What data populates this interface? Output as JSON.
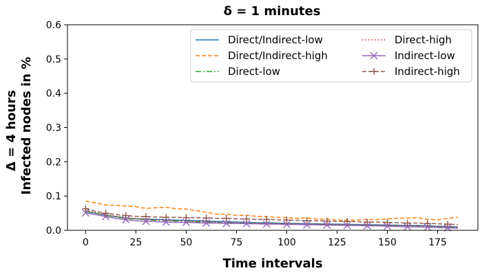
{
  "chart_data": {
    "type": "line",
    "title": "δ = 1 minutes",
    "xlabel": "Time intervals",
    "ylabel_lines": [
      "Δ = 4 hours",
      "Infected nodes in %"
    ],
    "xlim": [
      -9,
      195
    ],
    "ylim": [
      0,
      0.6
    ],
    "xticks": [
      0,
      25,
      50,
      75,
      100,
      125,
      150,
      175
    ],
    "yticks": [
      "0.0",
      "0.1",
      "0.2",
      "0.3",
      "0.4",
      "0.5",
      "0.6"
    ],
    "ytick_values": [
      0,
      0.1,
      0.2,
      0.3,
      0.4,
      0.5,
      0.6
    ],
    "grid": false,
    "legend_position": "upper-right",
    "x": [
      0,
      5,
      10,
      15,
      20,
      25,
      30,
      35,
      40,
      45,
      50,
      55,
      60,
      65,
      70,
      75,
      80,
      85,
      90,
      95,
      100,
      105,
      110,
      115,
      120,
      125,
      130,
      135,
      140,
      145,
      150,
      155,
      160,
      165,
      170,
      175,
      180,
      185
    ],
    "series": [
      {
        "name": "Direct/Indirect-low",
        "color": "#1f77b4",
        "dash": "solid",
        "marker": "none",
        "values": [
          0.055,
          0.05,
          0.044,
          0.04,
          0.036,
          0.034,
          0.033,
          0.032,
          0.031,
          0.03,
          0.029,
          0.028,
          0.027,
          0.026,
          0.025,
          0.024,
          0.023,
          0.022,
          0.022,
          0.021,
          0.02,
          0.02,
          0.019,
          0.019,
          0.018,
          0.018,
          0.017,
          0.017,
          0.016,
          0.016,
          0.015,
          0.015,
          0.014,
          0.014,
          0.013,
          0.012,
          0.011,
          0.01
        ]
      },
      {
        "name": "Direct/Indirect-high",
        "color": "#ff7f0e",
        "dash": "dashed",
        "marker": "none",
        "values": [
          0.085,
          0.08,
          0.074,
          0.073,
          0.071,
          0.069,
          0.064,
          0.066,
          0.067,
          0.063,
          0.062,
          0.057,
          0.053,
          0.047,
          0.047,
          0.044,
          0.044,
          0.041,
          0.04,
          0.038,
          0.037,
          0.035,
          0.036,
          0.033,
          0.033,
          0.03,
          0.03,
          0.03,
          0.032,
          0.031,
          0.034,
          0.035,
          0.036,
          0.037,
          0.032,
          0.031,
          0.035,
          0.038
        ]
      },
      {
        "name": "Direct-low",
        "color": "#2ca02c",
        "dash": "dashdot",
        "marker": "none",
        "values": [
          0.056,
          0.05,
          0.044,
          0.039,
          0.035,
          0.033,
          0.031,
          0.029,
          0.028,
          0.027,
          0.026,
          0.025,
          0.024,
          0.023,
          0.022,
          0.021,
          0.02,
          0.02,
          0.019,
          0.019,
          0.018,
          0.018,
          0.017,
          0.017,
          0.016,
          0.016,
          0.015,
          0.015,
          0.014,
          0.014,
          0.013,
          0.013,
          0.012,
          0.012,
          0.011,
          0.01,
          0.009,
          0.008
        ]
      },
      {
        "name": "Direct-high",
        "color": "#d62728",
        "dash": "dotted",
        "marker": "none",
        "values": [
          0.058,
          0.052,
          0.046,
          0.041,
          0.037,
          0.034,
          0.032,
          0.03,
          0.029,
          0.028,
          0.027,
          0.026,
          0.025,
          0.024,
          0.023,
          0.022,
          0.021,
          0.021,
          0.02,
          0.02,
          0.019,
          0.019,
          0.018,
          0.018,
          0.017,
          0.017,
          0.016,
          0.016,
          0.015,
          0.015,
          0.014,
          0.014,
          0.013,
          0.013,
          0.012,
          0.011,
          0.01,
          0.009
        ]
      },
      {
        "name": "Indirect-low",
        "color": "#9467bd",
        "dash": "solid",
        "marker": "x",
        "values": [
          0.051,
          0.046,
          0.04,
          0.035,
          0.031,
          0.028,
          0.026,
          0.025,
          0.024,
          0.023,
          0.023,
          0.022,
          0.021,
          0.021,
          0.02,
          0.02,
          0.019,
          0.019,
          0.018,
          0.018,
          0.017,
          0.017,
          0.016,
          0.016,
          0.015,
          0.015,
          0.014,
          0.014,
          0.013,
          0.013,
          0.012,
          0.011,
          0.01,
          0.01,
          0.009,
          0.008,
          0.007,
          0.006
        ]
      },
      {
        "name": "Indirect-high",
        "color": "#8c564b",
        "dash": "dashed",
        "marker": "plus",
        "values": [
          0.063,
          0.056,
          0.05,
          0.046,
          0.043,
          0.041,
          0.04,
          0.039,
          0.038,
          0.038,
          0.037,
          0.037,
          0.036,
          0.035,
          0.035,
          0.034,
          0.033,
          0.032,
          0.032,
          0.031,
          0.03,
          0.029,
          0.028,
          0.028,
          0.027,
          0.026,
          0.026,
          0.025,
          0.024,
          0.024,
          0.023,
          0.022,
          0.021,
          0.021,
          0.02,
          0.019,
          0.018,
          0.017
        ]
      }
    ]
  }
}
